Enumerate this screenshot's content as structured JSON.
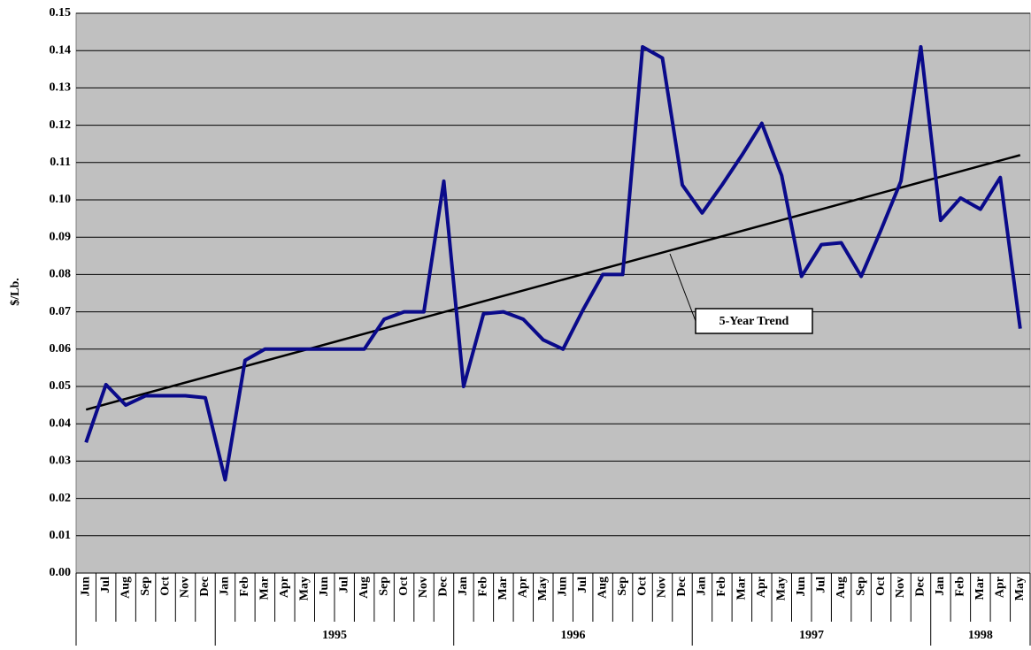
{
  "chart_data": {
    "type": "line",
    "y_label": "$/Lb.",
    "categories": [
      "Jun",
      "Jul",
      "Aug",
      "Sep",
      "Oct",
      "Nov",
      "Dec",
      "Jan",
      "Feb",
      "Mar",
      "Apr",
      "May",
      "Jun",
      "Jul",
      "Aug",
      "Sep",
      "Oct",
      "Nov",
      "Dec",
      "Jan",
      "Feb",
      "Mar",
      "Apr",
      "May",
      "Jun",
      "Jul",
      "Aug",
      "Sep",
      "Oct",
      "Nov",
      "Dec",
      "Jan",
      "Feb",
      "Mar",
      "Apr",
      "May",
      "Jun",
      "Jul",
      "Aug",
      "Sep",
      "Oct",
      "Nov",
      "Dec",
      "Jan",
      "Feb",
      "Mar",
      "Apr",
      "May"
    ],
    "years": [
      null,
      null,
      null,
      null,
      null,
      null,
      null,
      "1995",
      "1995",
      "1995",
      "1995",
      "1995",
      "1995",
      "1995",
      "1995",
      "1995",
      "1995",
      "1995",
      "1995",
      "1996",
      "1996",
      "1996",
      "1996",
      "1996",
      "1996",
      "1996",
      "1996",
      "1996",
      "1996",
      "1996",
      "1996",
      "1997",
      "1997",
      "1997",
      "1997",
      "1997",
      "1997",
      "1997",
      "1997",
      "1997",
      "1997",
      "1997",
      "1997",
      "1998",
      "1998",
      "1998",
      "1998",
      "1998"
    ],
    "values": [
      0.035,
      0.0505,
      0.045,
      0.0475,
      0.0475,
      0.0475,
      0.047,
      0.025,
      0.057,
      0.06,
      0.06,
      0.06,
      0.06,
      0.06,
      0.06,
      0.068,
      0.07,
      0.07,
      0.105,
      0.05,
      0.0695,
      0.07,
      0.068,
      0.0625,
      0.06,
      0.0705,
      0.08,
      0.08,
      0.141,
      0.138,
      0.104,
      0.0965,
      0.104,
      0.112,
      0.1205,
      0.1065,
      0.0795,
      0.088,
      0.0885,
      0.0795,
      0.092,
      0.105,
      0.141,
      0.0945,
      0.1005,
      0.0975,
      0.106,
      0.0655
    ],
    "color": "#0a0a8a",
    "trend": {
      "name": "5-Year Trend",
      "start": 0.0438,
      "end": 0.112,
      "color": "#000000"
    },
    "ylim": [
      0,
      0.15
    ],
    "yticks": [
      {
        "value": 0,
        "label": "0.00"
      },
      0.01,
      0.02,
      0.03,
      0.04,
      0.05,
      0.06,
      0.07,
      0.08,
      0.09,
      {
        "value": 0.1,
        "label": "0.10"
      },
      0.11,
      0.12,
      0.13,
      0.14,
      0.15
    ],
    "grid": true,
    "plot_background": "#c0c0c0"
  }
}
